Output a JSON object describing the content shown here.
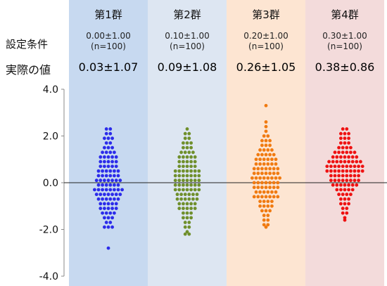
{
  "row_labels": {
    "settings": "設定条件",
    "actual": "実際の値"
  },
  "groups": [
    {
      "name": "第1群",
      "setting": "0.00±1.00",
      "n": "(n=100)",
      "actual": "0.03±1.07",
      "color": "#2b2bea",
      "band": "#c7d9f0"
    },
    {
      "name": "第2群",
      "setting": "0.10±1.00",
      "n": "(n=100)",
      "actual": "0.09±1.08",
      "color": "#6f8f2c",
      "band": "#dde6f2"
    },
    {
      "name": "第3群",
      "setting": "0.20±1.00",
      "n": "(n=100)",
      "actual": "0.26±1.05",
      "color": "#f07a10",
      "band": "#fde5d2"
    },
    {
      "name": "第4群",
      "setting": "0.30±1.00",
      "n": "(n=100)",
      "actual": "0.38±0.86",
      "color": "#ee1111",
      "band": "#f3dbdb"
    }
  ],
  "chart_data": {
    "type": "scatter",
    "ylim": [
      -4.0,
      4.0
    ],
    "yticks": [
      "4.0",
      "2.0",
      "0.0",
      "-2.0",
      "-4.0"
    ],
    "ytick_values": [
      4,
      2,
      0,
      -2,
      -4
    ],
    "reference_line_y": 0,
    "series": [
      {
        "values": [
          2.3,
          2.3,
          2.1,
          2.1,
          1.9,
          1.9,
          1.9,
          1.7,
          1.7,
          1.5,
          1.5,
          1.5,
          1.3,
          1.3,
          1.3,
          1.3,
          1.1,
          1.1,
          1.1,
          1.1,
          0.9,
          0.9,
          0.9,
          0.9,
          0.7,
          0.7,
          0.7,
          0.7,
          0.5,
          0.5,
          0.5,
          0.5,
          0.5,
          0.3,
          0.3,
          0.3,
          0.3,
          0.3,
          0.1,
          0.1,
          0.1,
          0.1,
          0.1,
          0.1,
          -0.1,
          -0.1,
          -0.1,
          -0.1,
          -0.1,
          -0.1,
          -0.3,
          -0.3,
          -0.3,
          -0.3,
          -0.3,
          -0.3,
          -0.3,
          -0.5,
          -0.5,
          -0.5,
          -0.5,
          -0.5,
          -0.5,
          -0.7,
          -0.7,
          -0.7,
          -0.7,
          -0.7,
          -0.9,
          -0.9,
          -0.9,
          -0.9,
          -0.9,
          -1.1,
          -1.1,
          -1.1,
          -1.1,
          -1.3,
          -1.3,
          -1.3,
          -1.3,
          -1.5,
          -1.5,
          -1.5,
          -1.7,
          -1.7,
          -1.9,
          -1.9,
          -1.9,
          -2.8,
          0.9,
          -0.3,
          0.3,
          -0.5,
          1.1,
          -0.7,
          0.5,
          0.1,
          -1.1,
          0.7
        ]
      },
      {
        "values": [
          2.3,
          2.1,
          2.1,
          1.9,
          1.9,
          1.7,
          1.7,
          1.7,
          1.5,
          1.5,
          1.5,
          1.3,
          1.3,
          1.3,
          1.1,
          1.1,
          1.1,
          1.1,
          0.9,
          0.9,
          0.9,
          0.9,
          0.7,
          0.7,
          0.7,
          0.7,
          0.5,
          0.5,
          0.5,
          0.5,
          0.5,
          0.3,
          0.3,
          0.3,
          0.3,
          0.3,
          0.1,
          0.1,
          0.1,
          0.1,
          0.1,
          0.1,
          -0.1,
          -0.1,
          -0.1,
          -0.1,
          -0.1,
          -0.1,
          -0.3,
          -0.3,
          -0.3,
          -0.3,
          -0.3,
          -0.3,
          -0.5,
          -0.5,
          -0.5,
          -0.5,
          -0.5,
          -0.7,
          -0.7,
          -0.7,
          -0.7,
          -0.7,
          -0.9,
          -0.9,
          -0.9,
          -0.9,
          -1.1,
          -1.1,
          -1.1,
          -1.1,
          -1.3,
          -1.3,
          -1.3,
          -1.5,
          -1.5,
          -1.5,
          -1.7,
          -1.7,
          -1.9,
          -1.9,
          -2.1,
          -2.2,
          -2.2,
          0.9,
          0.3,
          -0.3,
          0.5,
          0.7,
          -0.5,
          0.1,
          1.1,
          -0.7,
          0.3,
          -0.1,
          1.3,
          -0.9,
          0.5,
          -1.1
        ]
      },
      {
        "values": [
          3.3,
          2.6,
          2.4,
          2.2,
          2.0,
          2.0,
          1.8,
          1.8,
          1.8,
          1.6,
          1.6,
          1.6,
          1.4,
          1.4,
          1.4,
          1.4,
          1.2,
          1.2,
          1.2,
          1.2,
          1.0,
          1.0,
          1.0,
          1.0,
          1.0,
          0.8,
          0.8,
          0.8,
          0.8,
          0.8,
          0.6,
          0.6,
          0.6,
          0.6,
          0.6,
          0.6,
          0.4,
          0.4,
          0.4,
          0.4,
          0.4,
          0.4,
          0.2,
          0.2,
          0.2,
          0.2,
          0.2,
          0.2,
          0.2,
          0.0,
          0.0,
          0.0,
          0.0,
          0.0,
          0.0,
          -0.2,
          -0.2,
          -0.2,
          -0.2,
          -0.2,
          -0.2,
          -0.4,
          -0.4,
          -0.4,
          -0.4,
          -0.4,
          -0.6,
          -0.6,
          -0.6,
          -0.6,
          -0.6,
          -0.6,
          -0.8,
          -0.8,
          -0.8,
          -0.8,
          -1.0,
          -1.0,
          -1.0,
          -1.0,
          -1.2,
          -1.2,
          -1.2,
          -1.4,
          -1.4,
          -1.6,
          -1.6,
          -1.8,
          -1.8,
          -1.9,
          0.8,
          0.2,
          -0.2,
          0.4,
          1.0,
          -0.4,
          0.6,
          0.0,
          1.2,
          -0.6
        ]
      },
      {
        "values": [
          2.3,
          2.3,
          2.1,
          2.1,
          2.1,
          1.9,
          1.9,
          1.9,
          1.7,
          1.7,
          1.7,
          1.5,
          1.5,
          1.5,
          1.5,
          1.3,
          1.3,
          1.3,
          1.3,
          1.3,
          1.1,
          1.1,
          1.1,
          1.1,
          1.1,
          1.1,
          0.9,
          0.9,
          0.9,
          0.9,
          0.9,
          0.9,
          0.9,
          0.7,
          0.7,
          0.7,
          0.7,
          0.7,
          0.7,
          0.7,
          0.7,
          0.5,
          0.5,
          0.5,
          0.5,
          0.5,
          0.5,
          0.5,
          0.5,
          0.3,
          0.3,
          0.3,
          0.3,
          0.3,
          0.3,
          0.3,
          0.1,
          0.1,
          0.1,
          0.1,
          0.1,
          0.1,
          0.1,
          -0.1,
          -0.1,
          -0.1,
          -0.1,
          -0.1,
          -0.1,
          -0.3,
          -0.3,
          -0.3,
          -0.3,
          -0.3,
          -0.5,
          -0.5,
          -0.5,
          -0.5,
          -0.7,
          -0.7,
          -0.7,
          -0.9,
          -0.9,
          -0.9,
          -1.1,
          -1.1,
          -1.3,
          -1.3,
          -1.5,
          -1.6,
          0.7,
          0.5,
          0.9,
          0.3,
          0.1,
          1.1,
          0.7,
          -0.1,
          0.5,
          1.3,
          0.9
        ]
      }
    ]
  }
}
